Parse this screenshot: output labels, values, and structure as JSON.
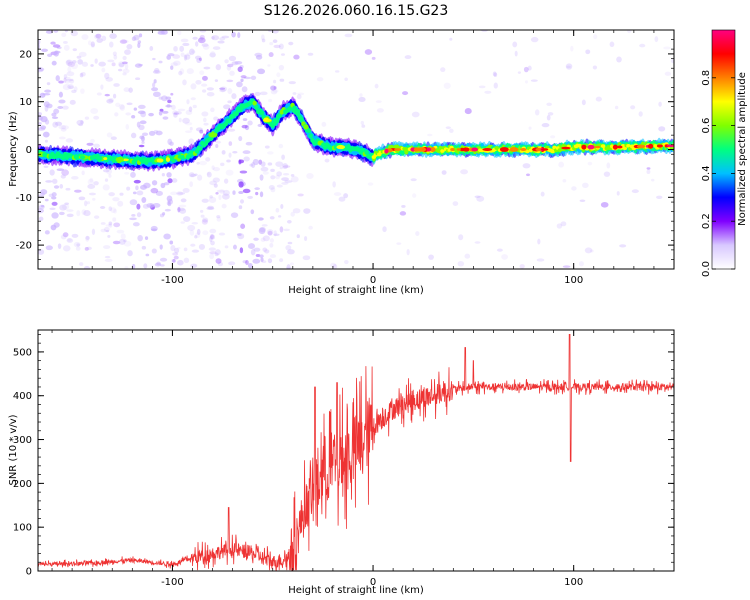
{
  "title": "S126.2026.060.16.15.G23",
  "chart_data": [
    {
      "type": "heatmap",
      "name": "spectrogram",
      "xlabel": "Height of straight line (km)",
      "ylabel": "Frequency (Hz)",
      "xlim": [
        -167,
        150
      ],
      "ylim": [
        -25,
        25
      ],
      "xticks": [
        -100,
        0,
        100
      ],
      "xtick_labels": [
        "-100",
        "0",
        "100"
      ],
      "yticks": [
        -20,
        -10,
        0,
        10,
        20
      ],
      "ytick_labels": [
        "-20",
        "-10",
        "0",
        "10",
        "20"
      ],
      "ridge": {
        "x": [
          -167,
          -150,
          -130,
          -110,
          -100,
          -90,
          -80,
          -70,
          -65,
          -60,
          -55,
          -50,
          -45,
          -40,
          -35,
          -30,
          -25,
          -20,
          -15,
          -10,
          -5,
          0,
          5,
          10,
          20,
          40,
          60,
          80,
          90,
          100,
          120,
          140,
          150
        ],
        "freq": [
          -1,
          -1.5,
          -2,
          -2.5,
          -2,
          -1,
          3,
          7,
          9,
          10,
          7,
          5,
          8,
          9,
          6,
          2,
          1,
          0.5,
          0.5,
          0,
          -0.5,
          -1.5,
          -0.5,
          0,
          0,
          0,
          0,
          0,
          0,
          0.5,
          0.5,
          0.7,
          0.8
        ]
      },
      "colorbar": {
        "label": "Normalized spectral amplitude",
        "range": [
          0,
          1
        ],
        "ticks": [
          0,
          0.2,
          0.4,
          0.6,
          0.8
        ],
        "tick_labels": [
          "0.0",
          "0.2",
          "0.4",
          "0.6",
          "0.8"
        ],
        "colors": [
          "#ffffff",
          "#d8c8ff",
          "#8000ff",
          "#0000ff",
          "#00c0ff",
          "#00ff80",
          "#80ff00",
          "#ffff00",
          "#ff8000",
          "#ff0000",
          "#ff0080"
        ]
      }
    },
    {
      "type": "line",
      "name": "snr",
      "xlabel": "Height of straight line (km)",
      "ylabel": "SNR (10 * v/v)",
      "xlim": [
        -167,
        150
      ],
      "ylim": [
        0,
        550
      ],
      "xticks": [
        -100,
        0,
        100
      ],
      "xtick_labels": [
        "-100",
        "0",
        "100"
      ],
      "yticks": [
        0,
        100,
        200,
        300,
        400,
        500
      ],
      "ytick_labels": [
        "0",
        "100",
        "200",
        "300",
        "400",
        "500"
      ],
      "line_color": "#ee3333",
      "envelope": {
        "x": [
          -167,
          -140,
          -120,
          -100,
          -90,
          -80,
          -70,
          -60,
          -50,
          -42,
          -38,
          -34,
          -30,
          -25,
          -20,
          -15,
          -10,
          -5,
          0,
          5,
          10,
          15,
          20,
          30,
          40,
          50,
          60,
          80,
          100,
          120,
          150
        ],
        "snr": [
          15,
          18,
          25,
          15,
          30,
          40,
          50,
          40,
          20,
          30,
          80,
          140,
          180,
          230,
          240,
          250,
          270,
          300,
          330,
          350,
          370,
          380,
          390,
          400,
          415,
          420,
          420,
          420,
          420,
          420,
          420
        ]
      },
      "spikes": [
        {
          "x": -72,
          "snr": 145
        },
        {
          "x": -29,
          "snr": 420
        },
        {
          "x": -18,
          "snr": 430
        },
        {
          "x": 46,
          "snr": 510
        },
        {
          "x": 50,
          "snr": 480
        },
        {
          "x": 98,
          "snr": 540
        },
        {
          "x": 98.5,
          "snr": 250
        }
      ]
    }
  ]
}
